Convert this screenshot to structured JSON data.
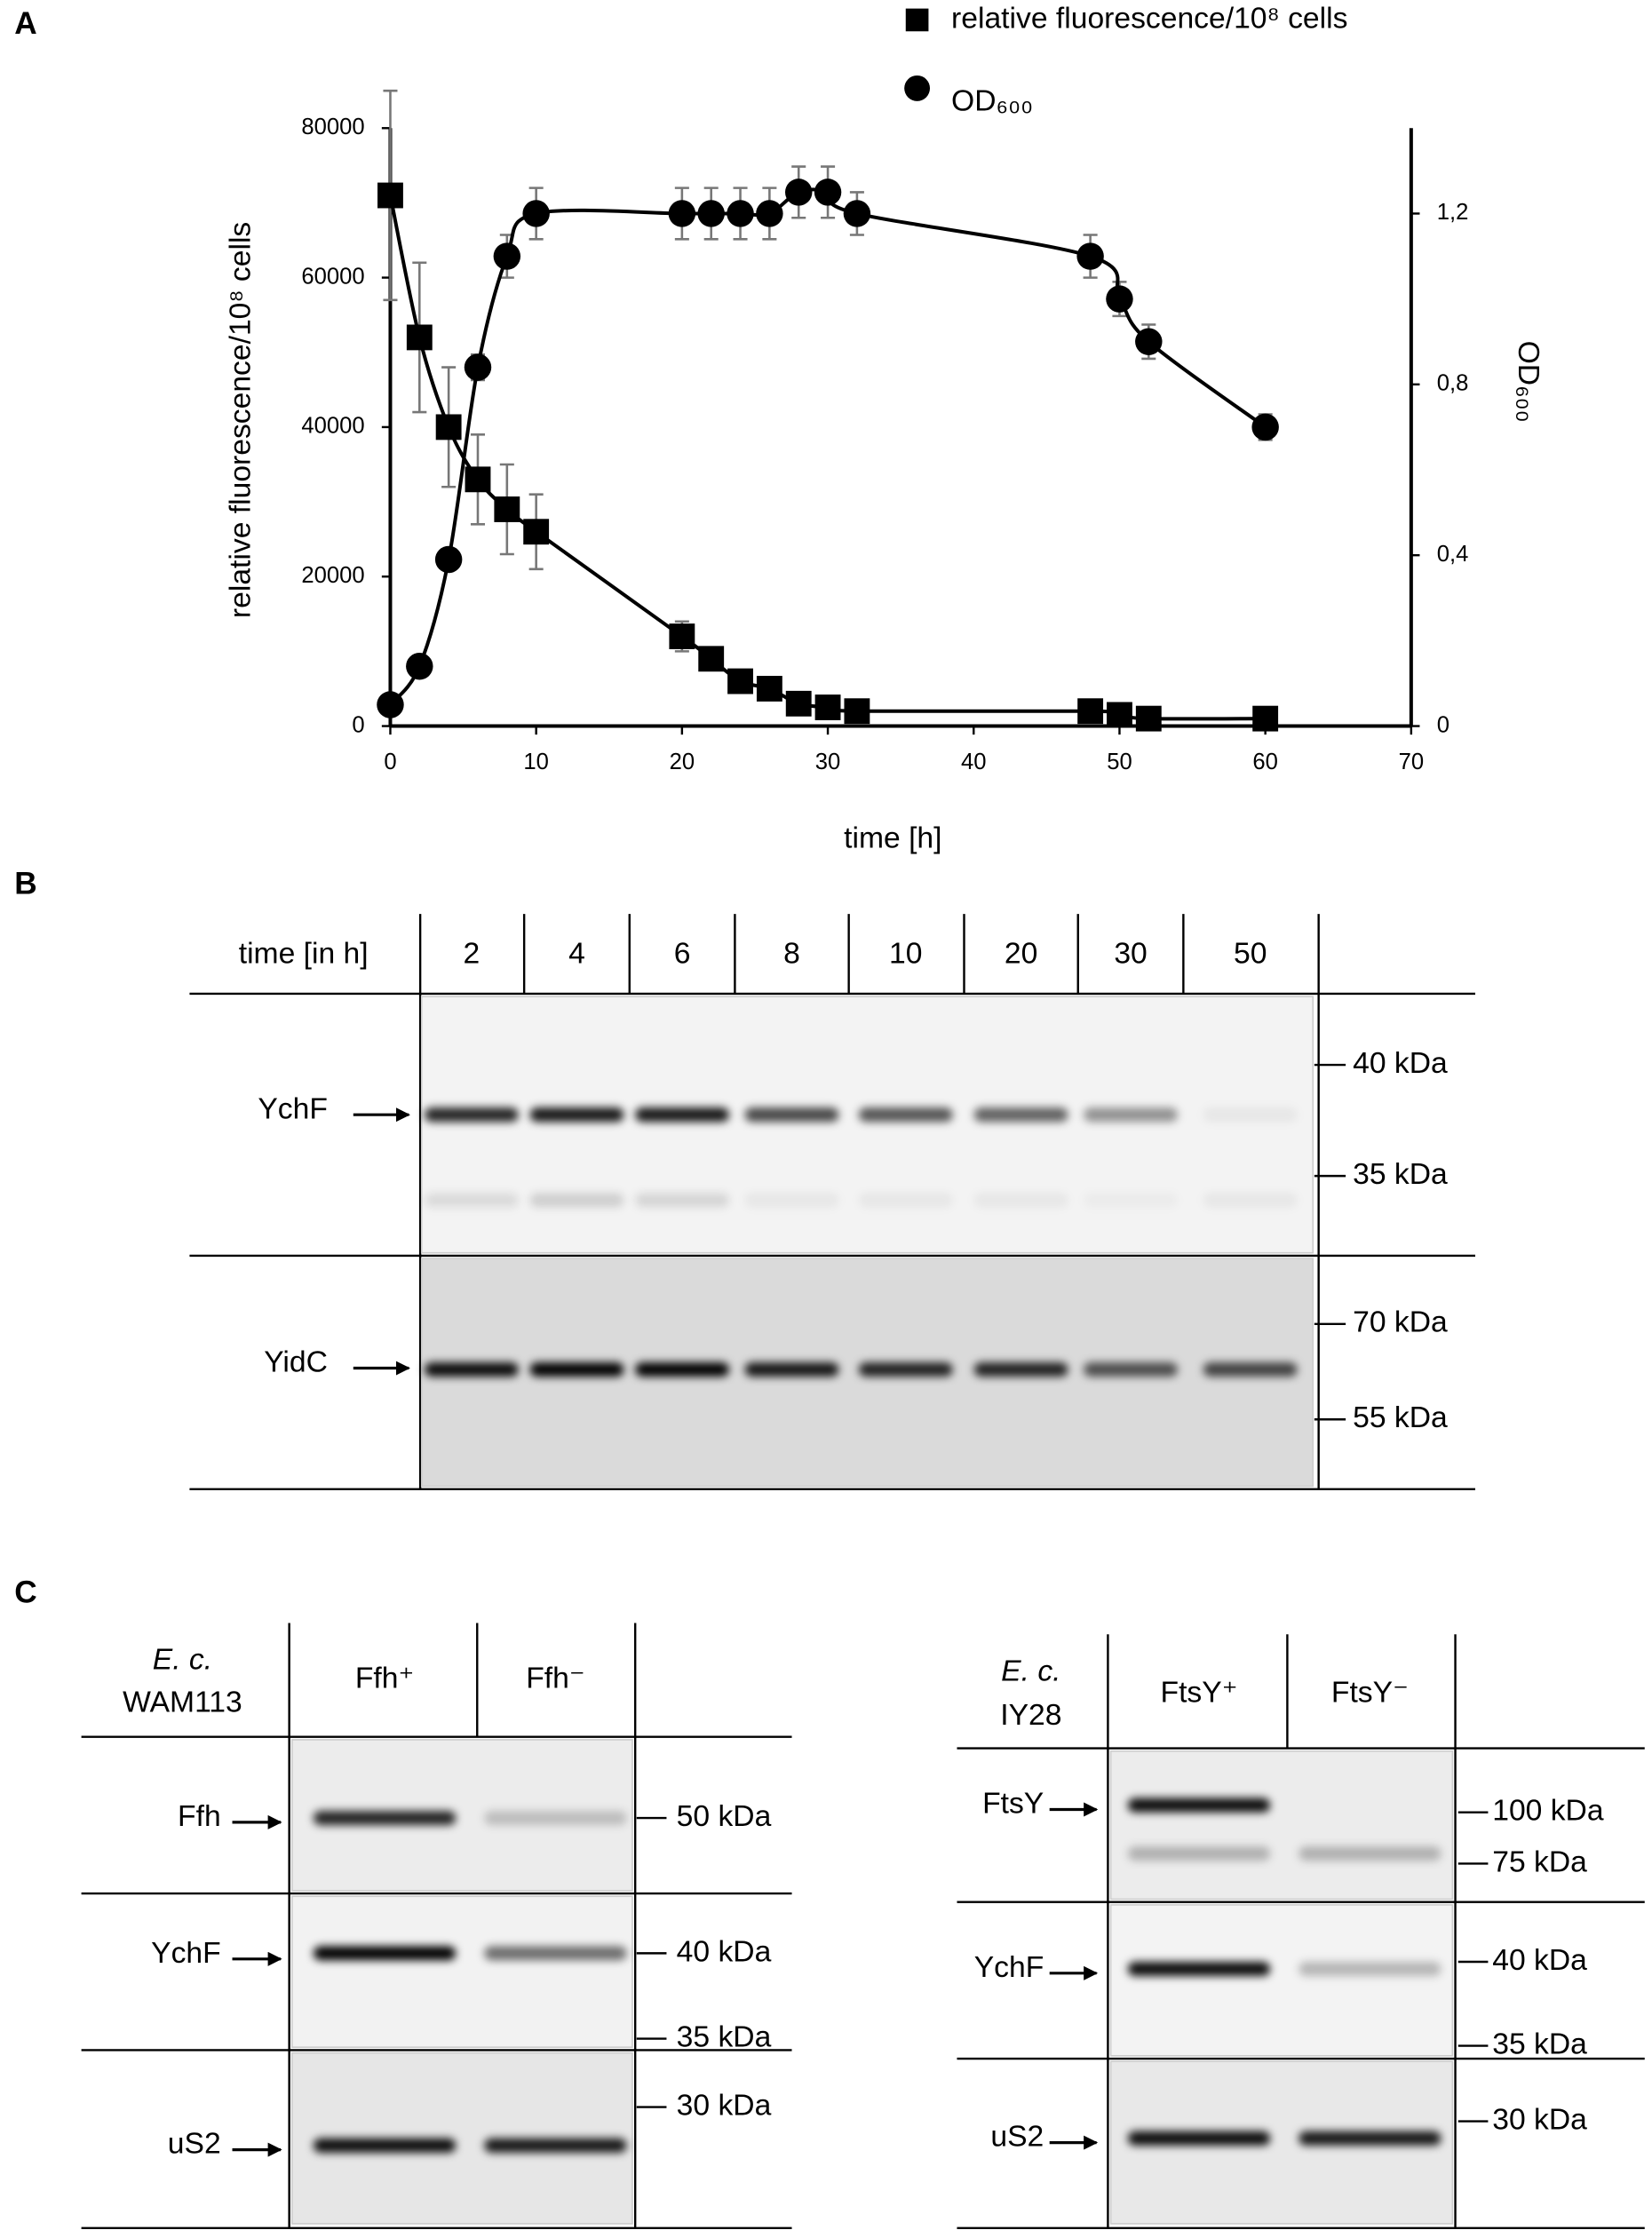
{
  "panels": {
    "a": "A",
    "b": "B",
    "c": "C"
  },
  "chart_data": {
    "type": "line",
    "x_label": "time [h]",
    "y_label": "relative fluorescence/10⁸ cells",
    "y2_label": "OD₆₀₀",
    "x": [
      0,
      2,
      4,
      6,
      8,
      10,
      20,
      22,
      24,
      26,
      28,
      30,
      32,
      48,
      50,
      52,
      60
    ],
    "series": [
      {
        "name": "relative fluorescence/10⁸ cells",
        "color": "#000000",
        "marker": "square",
        "axis": "y",
        "values": [
          71000,
          52000,
          40000,
          33000,
          29000,
          26000,
          12000,
          9000,
          6000,
          5000,
          3000,
          2500,
          2000,
          2000,
          1500,
          1000,
          1000
        ],
        "errors": [
          14000,
          10000,
          8000,
          6000,
          6000,
          5000,
          2000,
          500,
          500,
          500,
          500,
          500,
          500,
          500,
          500,
          500,
          500
        ]
      },
      {
        "name": "OD₆₀₀",
        "color": "#000000",
        "marker": "circle",
        "axis": "y2",
        "values": [
          0.05,
          0.14,
          0.39,
          0.84,
          1.1,
          1.2,
          1.2,
          1.2,
          1.2,
          1.2,
          1.25,
          1.25,
          1.2,
          1.1,
          1.0,
          0.9,
          0.7
        ],
        "errors": [
          0.01,
          0.02,
          0.02,
          0.03,
          0.05,
          0.06,
          0.06,
          0.06,
          0.06,
          0.06,
          0.06,
          0.06,
          0.05,
          0.05,
          0.04,
          0.04,
          0.03
        ]
      }
    ],
    "error_color": "#777777",
    "xlim": [
      0,
      70
    ],
    "xticks": [
      0,
      10,
      20,
      30,
      40,
      50,
      60,
      70
    ],
    "ylim": [
      0,
      80000
    ],
    "yticks": [
      0,
      20000,
      40000,
      60000,
      80000
    ],
    "y2lim": [
      0,
      1.4
    ],
    "y2ticks": [
      0,
      {
        "value": 0.4,
        "label": "0,4"
      },
      {
        "value": 0.8,
        "label": "0,8"
      },
      {
        "value": 1.2,
        "label": "1,2"
      }
    ],
    "legend": "top"
  },
  "blot_b": {
    "header": "time [in h]",
    "lanes": [
      2,
      4,
      6,
      8,
      10,
      20,
      30,
      50
    ],
    "rows": [
      {
        "label": "YchF",
        "markers": [
          "40 kDa",
          "35 kDa"
        ]
      },
      {
        "label": "YidC",
        "markers": [
          "70 kDa",
          "55 kDa"
        ]
      }
    ]
  },
  "blot_c": [
    {
      "strain_genus": "E. c.",
      "strain": "WAM113",
      "lanes": [
        "Ffh⁺",
        "Ffh⁻"
      ],
      "rows": [
        {
          "label": "Ffh",
          "markers": [
            "50 kDa"
          ]
        },
        {
          "label": "YchF",
          "markers": [
            "40 kDa",
            "35 kDa"
          ]
        },
        {
          "label": "uS2",
          "markers": [
            "30 kDa"
          ]
        }
      ]
    },
    {
      "strain_genus": "E. c.",
      "strain": "IY28",
      "lanes": [
        "FtsY⁺",
        "FtsY⁻"
      ],
      "rows": [
        {
          "label": "FtsY",
          "markers": [
            "100 kDa",
            "75 kDa"
          ]
        },
        {
          "label": "YchF",
          "markers": [
            "40 kDa",
            "35 kDa"
          ]
        },
        {
          "label": "uS2",
          "markers": [
            "30 kDa"
          ]
        }
      ]
    }
  ]
}
